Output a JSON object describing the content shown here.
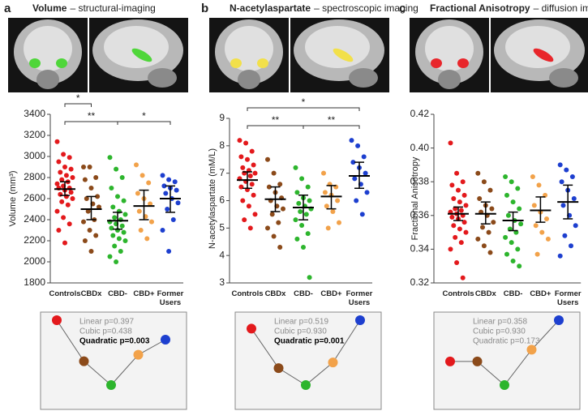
{
  "chart_data": [
    {
      "type": "strip",
      "panel": "a",
      "title": "Volume",
      "subtitle": "– structural-imaging",
      "ylabel": "Volume (mm³)",
      "categories": [
        "Controls",
        "CBDx",
        "CBD-",
        "CBD+",
        "Former Users"
      ],
      "colors": [
        "#e3191c",
        "#8b4a1a",
        "#2db52d",
        "#f2a24a",
        "#1d3fcf"
      ],
      "region_color": "#4fd63a",
      "points": [
        [
          3140,
          3020,
          2990,
          2950,
          2900,
          2880,
          2850,
          2820,
          2800,
          2780,
          2760,
          2740,
          2720,
          2700,
          2700,
          2680,
          2660,
          2640,
          2620,
          2600,
          2570,
          2540,
          2480,
          2420,
          2360,
          2300,
          2180
        ],
        [
          2900,
          2900,
          2800,
          2780,
          2700,
          2620,
          2600,
          2550,
          2520,
          2480,
          2400,
          2380,
          2300,
          2250,
          2200,
          2100
        ],
        [
          2990,
          2880,
          2800,
          2700,
          2620,
          2580,
          2520,
          2480,
          2450,
          2420,
          2400,
          2380,
          2360,
          2340,
          2320,
          2300,
          2280,
          2250,
          2220,
          2200,
          2150,
          2100,
          2050,
          2000
        ],
        [
          2920,
          2820,
          2750,
          2650,
          2600,
          2550,
          2480,
          2430,
          2380,
          2300,
          2220
        ],
        [
          2820,
          2780,
          2760,
          2720,
          2700,
          2680,
          2650,
          2600,
          2560,
          2500,
          2400,
          2300,
          2100
        ]
      ],
      "means": [
        2690,
        2500,
        2390,
        2530,
        2600
      ],
      "error_low": [
        2630,
        2400,
        2310,
        2400,
        2470
      ],
      "error_high": [
        2760,
        2620,
        2470,
        2680,
        2720
      ],
      "ylim": [
        1800,
        3400
      ],
      "yticks": [
        1800,
        2000,
        2200,
        2400,
        2600,
        2800,
        3000,
        3200,
        3400
      ],
      "brackets": [
        {
          "from": "Controls",
          "to": "CBD-",
          "label": "**"
        },
        {
          "from": "CBD-",
          "to": "Former Users",
          "label": "*"
        },
        {
          "from": "Controls",
          "to": "CBDx",
          "label": "*"
        }
      ],
      "trend": {
        "annotations": [
          {
            "text": "Linear p=0.397",
            "bold": false
          },
          {
            "text": "Cubic p=0.438",
            "bold": false
          },
          {
            "text": "Quadratic p=0.003",
            "bold": true
          }
        ]
      }
    },
    {
      "type": "strip",
      "panel": "b",
      "title": "N-acetylaspartate",
      "subtitle": "– spectroscopic imaging",
      "ylabel": "N-acetylaspartate (mM/L)",
      "categories": [
        "Controls",
        "CBDx",
        "CBD-",
        "CBD+",
        "Former Users"
      ],
      "colors": [
        "#e3191c",
        "#8b4a1a",
        "#2db52d",
        "#f2a24a",
        "#1d3fcf"
      ],
      "region_color": "#f2e04a",
      "points": [
        [
          8.2,
          8.1,
          7.8,
          7.6,
          7.5,
          7.3,
          7.2,
          7.1,
          7.0,
          7.0,
          6.9,
          6.8,
          6.7,
          6.6,
          6.5,
          6.4,
          6.2,
          6.0,
          5.8,
          5.5,
          5.3,
          5.0
        ],
        [
          7.5,
          7.0,
          6.6,
          6.5,
          6.3,
          6.1,
          6.0,
          5.8,
          5.7,
          5.5,
          5.2,
          5.0,
          4.7,
          4.3
        ],
        [
          7.2,
          6.8,
          6.5,
          6.3,
          6.1,
          6.0,
          5.9,
          5.8,
          5.7,
          5.6,
          5.5,
          5.3,
          5.1,
          4.8,
          4.6,
          4.3,
          3.2
        ],
        [
          7.0,
          6.6,
          6.5,
          6.3,
          6.2,
          6.0,
          5.8,
          5.6,
          5.2,
          5.0
        ],
        [
          8.2,
          8.0,
          7.6,
          7.4,
          7.2,
          7.0,
          6.8,
          6.6,
          6.3,
          6.0,
          5.5
        ]
      ],
      "means": [
        6.75,
        6.05,
        5.75,
        6.15,
        6.9
      ],
      "error_low": [
        6.45,
        5.6,
        5.3,
        5.7,
        6.45
      ],
      "error_high": [
        7.05,
        6.5,
        6.2,
        6.55,
        7.4
      ],
      "ylim": [
        3,
        9
      ],
      "yticks": [
        3,
        4,
        5,
        6,
        7,
        8,
        9
      ],
      "brackets": [
        {
          "from": "Controls",
          "to": "CBD-",
          "label": "**"
        },
        {
          "from": "CBD-",
          "to": "Former Users",
          "label": "**"
        },
        {
          "from": "Controls",
          "to": "Former Users",
          "label": "*"
        }
      ],
      "trend": {
        "annotations": [
          {
            "text": "Linear p=0.519",
            "bold": false
          },
          {
            "text": "Cubic p=0.930",
            "bold": false
          },
          {
            "text": "Quadratic p=0.001",
            "bold": true
          }
        ]
      }
    },
    {
      "type": "strip",
      "panel": "c",
      "title": "Fractional Anisotropy",
      "subtitle": "– diffusion imaging",
      "ylabel": "Fractional Anisotropy",
      "categories": [
        "Controls",
        "CBDx",
        "CBD-",
        "CBD+",
        "Former Users"
      ],
      "colors": [
        "#e3191c",
        "#8b4a1a",
        "#2db52d",
        "#f2a24a",
        "#1d3fcf"
      ],
      "region_color": "#e8262b",
      "points": [
        [
          0.403,
          0.385,
          0.38,
          0.378,
          0.375,
          0.372,
          0.37,
          0.368,
          0.366,
          0.364,
          0.363,
          0.362,
          0.361,
          0.36,
          0.359,
          0.358,
          0.356,
          0.354,
          0.352,
          0.35,
          0.347,
          0.344,
          0.34,
          0.332,
          0.323
        ],
        [
          0.385,
          0.38,
          0.375,
          0.37,
          0.366,
          0.364,
          0.362,
          0.36,
          0.356,
          0.353,
          0.35,
          0.346,
          0.342,
          0.338
        ],
        [
          0.383,
          0.38,
          0.376,
          0.372,
          0.368,
          0.364,
          0.36,
          0.357,
          0.355,
          0.352,
          0.35,
          0.347,
          0.344,
          0.34,
          0.337,
          0.333,
          0.33
        ],
        [
          0.383,
          0.378,
          0.372,
          0.366,
          0.362,
          0.358,
          0.354,
          0.35,
          0.346,
          0.337
        ],
        [
          0.39,
          0.387,
          0.383,
          0.38,
          0.375,
          0.37,
          0.366,
          0.36,
          0.354,
          0.348,
          0.342,
          0.336
        ]
      ],
      "means": [
        0.361,
        0.361,
        0.357,
        0.363,
        0.368
      ],
      "error_low": [
        0.357,
        0.355,
        0.351,
        0.356,
        0.358
      ],
      "error_high": [
        0.365,
        0.368,
        0.362,
        0.371,
        0.378
      ],
      "ylim": [
        0.32,
        0.42
      ],
      "yticks": [
        0.32,
        0.34,
        0.36,
        0.38,
        {
          "value": 0.4,
          "label": "0.40"
        },
        0.42
      ],
      "brackets": [],
      "trend": {
        "annotations": [
          {
            "text": "Linear p=0.358",
            "bold": false
          },
          {
            "text": "Cubic p=0.930",
            "bold": false
          },
          {
            "text": "Quadratic p=0.173",
            "bold": false
          }
        ]
      }
    }
  ]
}
